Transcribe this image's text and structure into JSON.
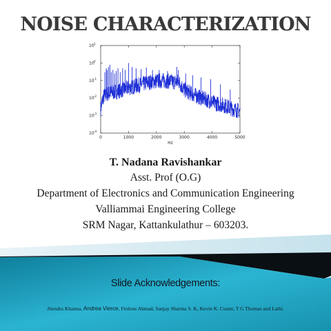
{
  "slide": {
    "title": "NOISE CHARACTERIZATION",
    "author": {
      "name": "T. Nadana Ravishankar",
      "position": "Asst. Prof (O.G)",
      "department": "Department of  Electronics and Communication Engineering",
      "college": "Valliammai Engineering College",
      "address": "SRM Nagar, Kattankulathur – 603203."
    },
    "acknowledgements": {
      "heading": "Slide Acknowledgements:",
      "names_part1": "Jitendra Khanna, ",
      "names_part2": "Andrea Vierce",
      "names_part3": ", Firdous Ahmad, Sanjay  Sharma S. K, Kevin K. Custer, T G Thomas and Lathi."
    }
  },
  "chart_data": {
    "type": "line",
    "title": "",
    "xlabel": "Hz",
    "ylabel": "",
    "xlim": [
      0,
      5000
    ],
    "ylim_log10": [
      -4,
      1
    ],
    "x_ticks": [
      "0",
      "1000",
      "2000",
      "3000",
      "4000",
      "5000"
    ],
    "y_ticks": [
      {
        "base": "10",
        "exp": "1"
      },
      {
        "base": "10",
        "exp": "0"
      },
      {
        "base": "10",
        "exp": "-1"
      },
      {
        "base": "10",
        "exp": "-2"
      },
      {
        "base": "10",
        "exp": "-3"
      },
      {
        "base": "10",
        "exp": "-4"
      }
    ],
    "y_scale": "log",
    "grid": false,
    "series_color": "#1f2fd6",
    "series": [
      {
        "name": "",
        "envelope": {
          "x": [
            0,
            100,
            250,
            500,
            800,
            1000,
            1300,
            1600,
            1900,
            2200,
            2500,
            2700,
            2800,
            2900,
            3000,
            3200,
            3500,
            3800,
            4100,
            4400,
            4700,
            5000
          ],
          "y": [
            0.0025,
            0.012,
            0.018,
            0.022,
            0.03,
            0.038,
            0.05,
            0.07,
            0.09,
            0.1,
            0.09,
            0.08,
            0.09,
            0.05,
            0.03,
            0.02,
            0.012,
            0.008,
            0.005,
            0.004,
            0.0025,
            0.0018
          ]
        },
        "spike_x": [
          150,
          200,
          230,
          280,
          330,
          380,
          440,
          500,
          560,
          620,
          700,
          790,
          880,
          1000,
          1130,
          1270,
          1450,
          1640,
          1860,
          2100,
          2400,
          2730,
          2790,
          3050,
          3300,
          3600,
          3950,
          4300,
          4650
        ],
        "spike_y": [
          0.3,
          0.5,
          0.4,
          0.6,
          0.8,
          0.3,
          0.4,
          0.25,
          0.35,
          0.5,
          0.3,
          0.5,
          0.4,
          1.0,
          0.6,
          0.5,
          0.45,
          0.55,
          0.4,
          0.4,
          0.35,
          0.6,
          0.4,
          0.25,
          0.2,
          0.15,
          0.12,
          0.06,
          0.03
        ]
      }
    ]
  },
  "colors": {
    "title": "#3a3a3a",
    "footer_teal": "#1aa3c2",
    "footer_dark": "#0a0f13",
    "footer_light": "#cfe6ee"
  }
}
